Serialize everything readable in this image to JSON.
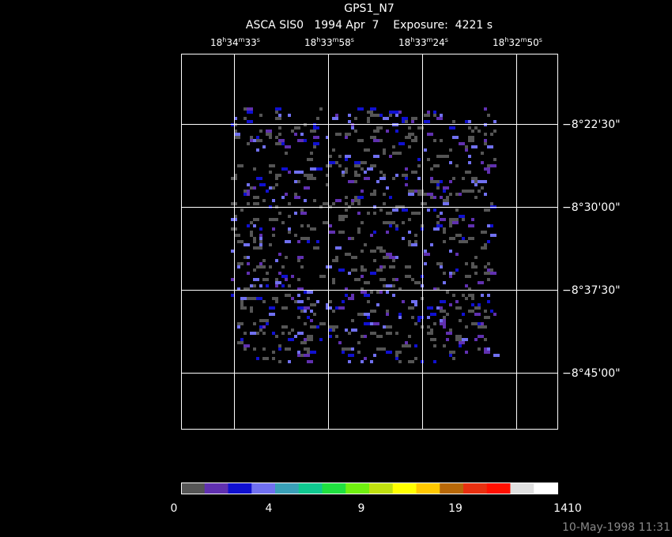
{
  "title": "GPS1_N7",
  "subtitle": "ASCA SIS0   1994 Apr  7    Exposure:  4221 s",
  "ra_labels": [
    [
      "18",
      "h",
      "34",
      "m",
      "33",
      "s"
    ],
    [
      "18",
      "h",
      "33",
      "m",
      "58",
      "s"
    ],
    [
      "18",
      "h",
      "33",
      "m",
      "24",
      "s"
    ],
    [
      "18",
      "h",
      "32",
      "m",
      "50",
      "s"
    ]
  ],
  "dec_labels": [
    "−8°22'30\"",
    "−8°30'00\"",
    "−8°37'30\"",
    "−8°45'00\""
  ],
  "colorbar": {
    "colors": [
      "#555555",
      "#6030b0",
      "#1010d0",
      "#7070f0",
      "#3aa0b8",
      "#10c890",
      "#20e040",
      "#70f010",
      "#c0e010",
      "#ffff00",
      "#ffc800",
      "#b86808",
      "#e83010",
      "#ff1000",
      "#e0e0e0",
      "#ffffff"
    ],
    "labels": [
      "0",
      "4",
      "9",
      "19",
      "1410"
    ]
  },
  "timestamp": "10-May-1998 11:31"
}
